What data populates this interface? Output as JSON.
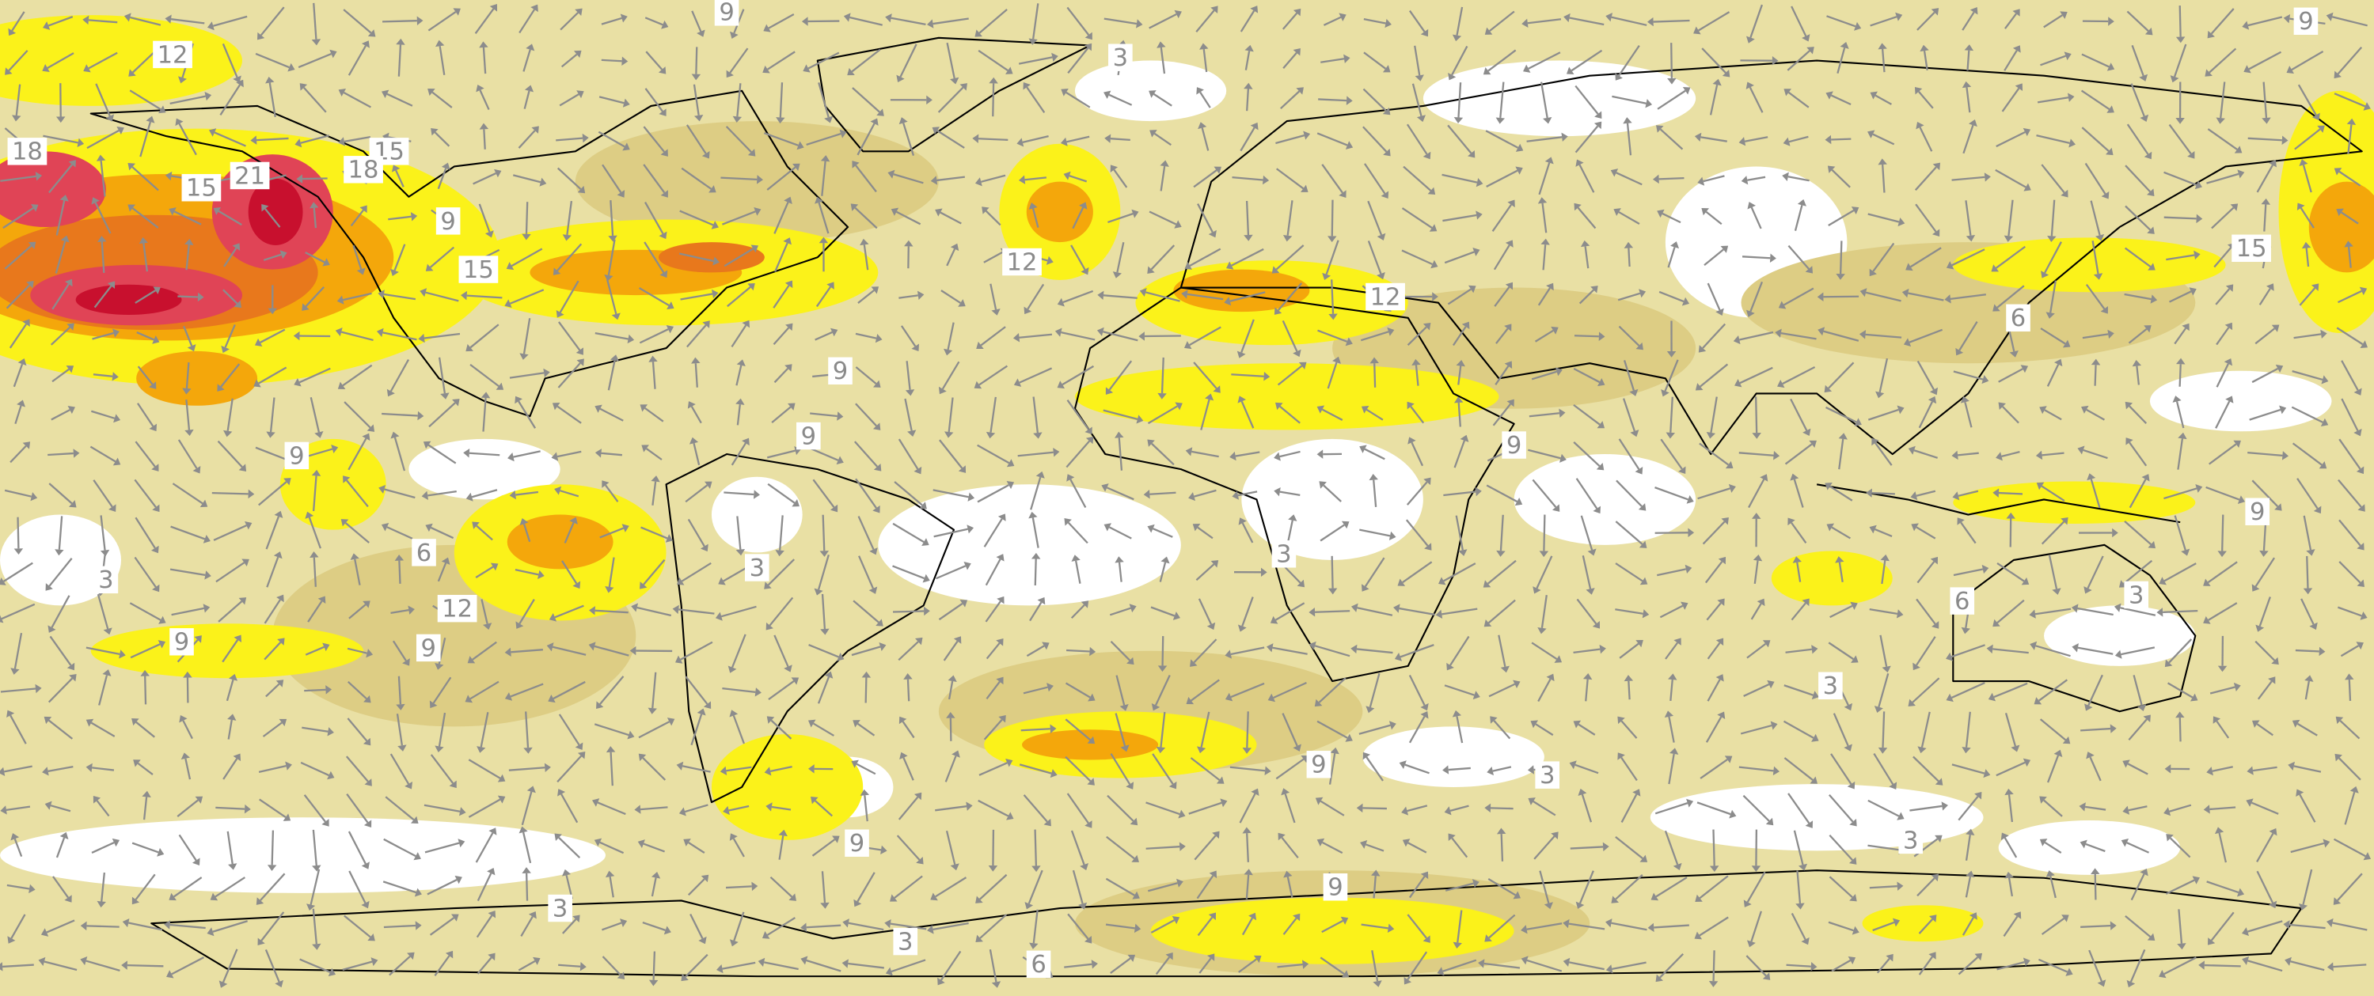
{
  "contour_labels": [
    9,
    3,
    9,
    12,
    18,
    15,
    21,
    18,
    15,
    9,
    15,
    12,
    12,
    15,
    6,
    9,
    9,
    9,
    9,
    9,
    6,
    3,
    3,
    3,
    12,
    9,
    9,
    6,
    3,
    3,
    9,
    3,
    9,
    3,
    9,
    3,
    3,
    6
  ]
}
